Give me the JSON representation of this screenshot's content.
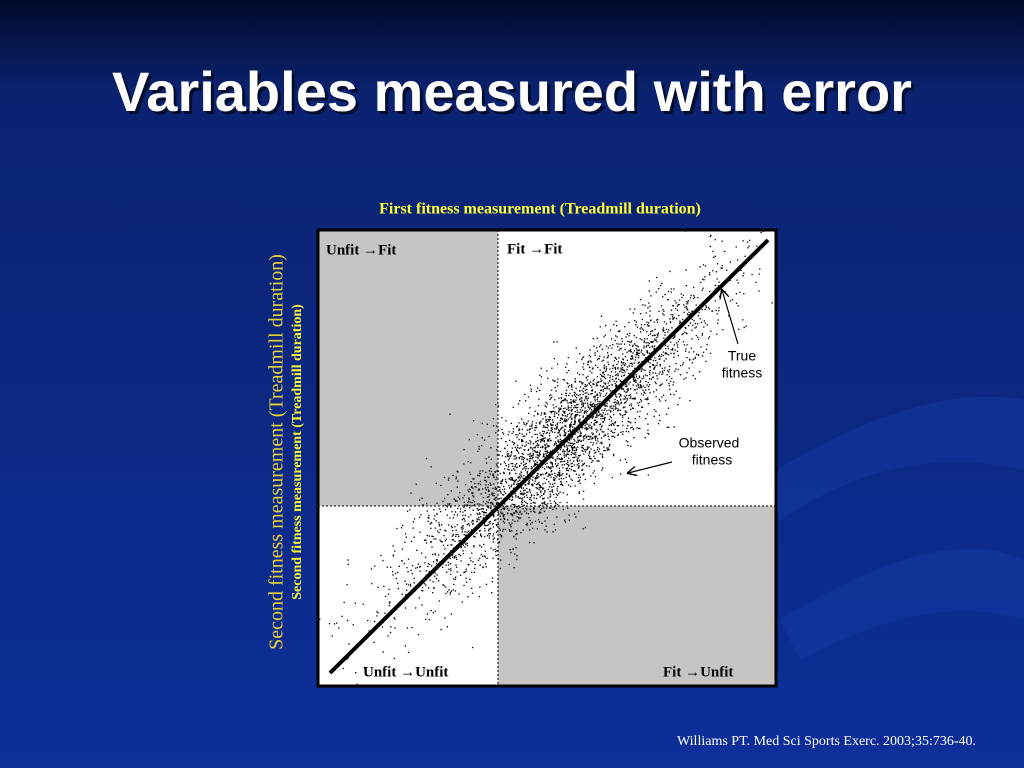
{
  "slide": {
    "title": "Variables measured with error",
    "x_axis_label": "First fitness measurement (Treadmill duration)",
    "y_axis_label_outer": "Second fitness measurement (Treadmill duration)",
    "y_axis_label_inner": "Second fitness measurement (Treadmill duration)",
    "quadrants": {
      "top_left": "Unfit →Fit",
      "top_right": "Fit →Fit",
      "bottom_left": "Unfit →Unfit",
      "bottom_right": "Fit →Unfit"
    },
    "annotations": {
      "true_fitness": [
        "True",
        "fitness"
      ],
      "observed_fitness": [
        "Observed",
        "fitness"
      ]
    },
    "citation": "Williams PT.  Med Sci Sports Exerc. 2003;35:736-40."
  }
}
